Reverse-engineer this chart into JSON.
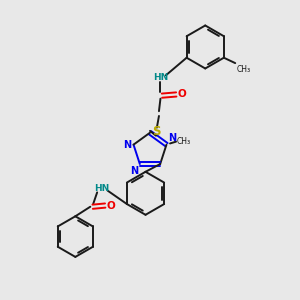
{
  "background_color": "#e8e8e8",
  "bond_color": "#1a1a1a",
  "nitrogen_color": "#0000ee",
  "oxygen_color": "#ee0000",
  "sulfur_color": "#bbaa00",
  "nh_color": "#008888",
  "figsize": [
    3.0,
    3.0
  ],
  "dpi": 100,
  "xlim": [
    0,
    10
  ],
  "ylim": [
    0,
    10
  ]
}
